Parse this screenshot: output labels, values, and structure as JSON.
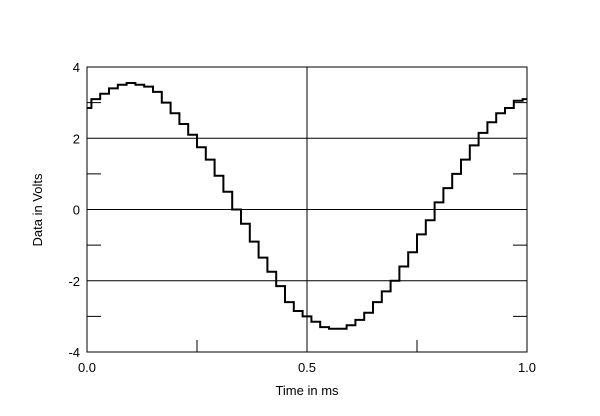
{
  "chart_data": {
    "type": "line",
    "title": "",
    "xlabel": "Time in ms",
    "ylabel": "Data in Volts",
    "xlim": [
      0,
      1
    ],
    "ylim": [
      -4,
      4
    ],
    "grid": true,
    "x_ticks": [
      0.0,
      0.5,
      1.0
    ],
    "x_tick_labels": [
      "0.0",
      "0.5",
      "1.0"
    ],
    "y_ticks": [
      -4,
      -3,
      -2,
      -1,
      0,
      1,
      2,
      3,
      4
    ],
    "y_tick_labels": [
      "-4",
      "",
      "-2",
      "",
      "0",
      "",
      "2",
      "",
      "4"
    ],
    "series": [
      {
        "color": "#000000",
        "x": [
          0.0,
          0.02,
          0.04,
          0.06,
          0.08,
          0.1,
          0.12,
          0.14,
          0.16,
          0.18,
          0.2,
          0.22,
          0.24,
          0.26,
          0.28,
          0.3,
          0.32,
          0.34,
          0.36,
          0.38,
          0.4,
          0.42,
          0.44,
          0.46,
          0.48,
          0.5,
          0.52,
          0.54,
          0.56,
          0.58,
          0.6,
          0.62,
          0.64,
          0.66,
          0.68,
          0.7,
          0.72,
          0.74,
          0.76,
          0.78,
          0.8,
          0.82,
          0.84,
          0.86,
          0.88,
          0.9,
          0.92,
          0.94,
          0.96,
          0.98,
          1.0
        ],
        "y": [
          2.85,
          3.1,
          3.25,
          3.4,
          3.5,
          3.55,
          3.5,
          3.45,
          3.3,
          3.0,
          2.7,
          2.4,
          2.1,
          1.75,
          1.4,
          0.95,
          0.5,
          0.0,
          -0.4,
          -0.9,
          -1.35,
          -1.75,
          -2.15,
          -2.6,
          -2.85,
          -3.0,
          -3.15,
          -3.3,
          -3.35,
          -3.35,
          -3.25,
          -3.1,
          -2.9,
          -2.6,
          -2.3,
          -2.0,
          -1.6,
          -1.2,
          -0.7,
          -0.3,
          0.2,
          0.6,
          1.0,
          1.4,
          1.8,
          2.15,
          2.45,
          2.7,
          2.85,
          3.05,
          3.1
        ]
      }
    ]
  }
}
